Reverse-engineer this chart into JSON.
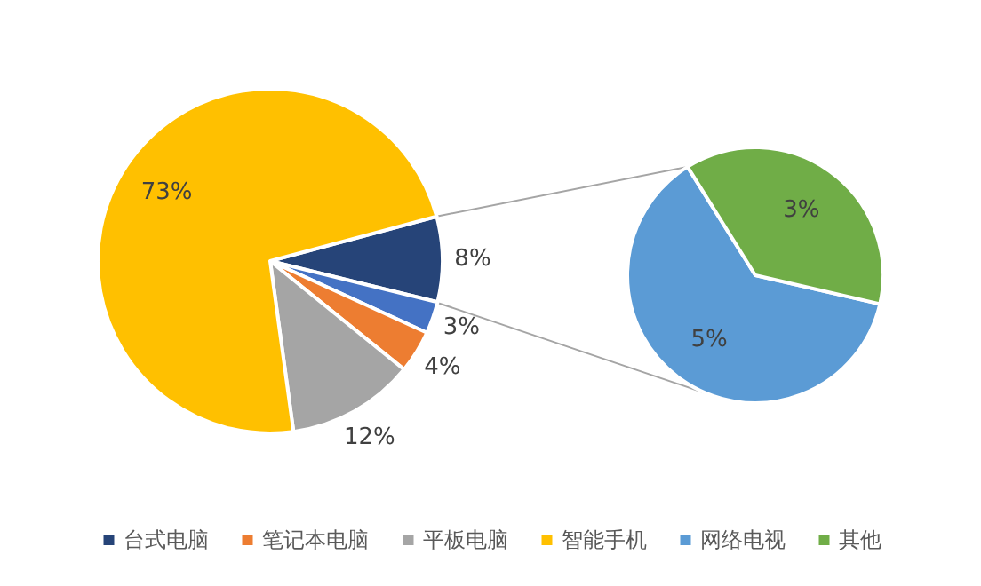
{
  "chart_data": [
    {
      "type": "pie",
      "categories": [
        "台式电脑",
        null,
        "笔记本电脑",
        "平板电脑",
        "智能手机"
      ],
      "values": [
        8,
        3,
        4,
        12,
        73
      ],
      "value_labels": [
        "8%",
        "3%",
        "4%",
        "12%",
        "73%"
      ],
      "colors": [
        "#264478",
        "#4472c4",
        "#ed7d31",
        "#a5a5a5",
        "#ffc000"
      ],
      "legend": "bottom"
    },
    {
      "type": "pie",
      "categories": [
        "网络电视",
        "其他"
      ],
      "values": [
        5,
        3
      ],
      "value_labels": [
        "5%",
        "3%"
      ],
      "colors": [
        "#5b9bd5",
        "#70ad47"
      ],
      "legend": "bottom"
    }
  ]
}
